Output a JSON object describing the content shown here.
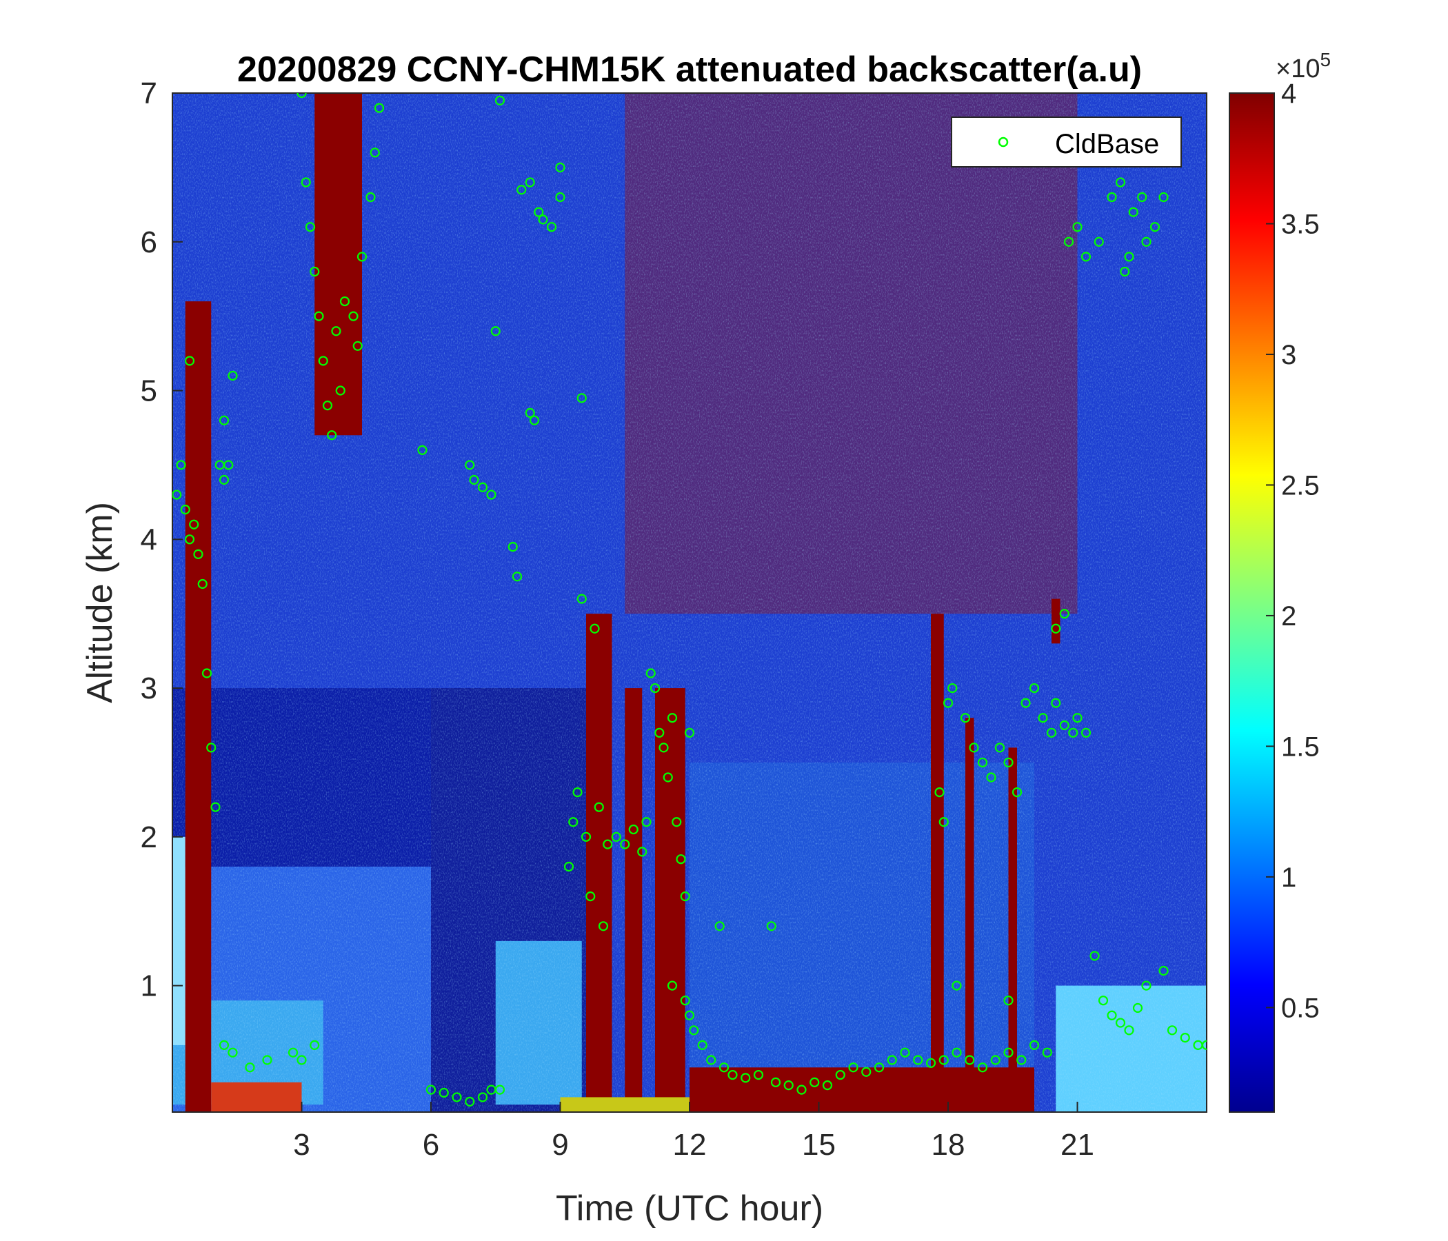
{
  "chart_data": {
    "type": "heatmap",
    "title": "20200829 CCNY-CHM15K attenuated backscatter(a.u)",
    "xlabel": "Time (UTC hour)",
    "ylabel": "Altitude (km)",
    "xlim": [
      0,
      24
    ],
    "ylim": [
      0.15,
      7
    ],
    "xticks": [
      3,
      6,
      9,
      12,
      15,
      18,
      21
    ],
    "xtick_labels": [
      "3",
      "6",
      "9",
      "12",
      "15",
      "18",
      "21"
    ],
    "yticks": [
      1,
      2,
      3,
      4,
      5,
      6,
      7
    ],
    "ytick_labels": [
      "1",
      "2",
      "3",
      "4",
      "5",
      "6",
      "7"
    ],
    "colormap": "jet",
    "colorbar": {
      "min": 0.1,
      "max": 4,
      "ticks": [
        0.5,
        1,
        1.5,
        2,
        2.5,
        3,
        3.5,
        4
      ],
      "tick_labels": [
        "0.5",
        "1",
        "1.5",
        "2",
        "2.5",
        "3",
        "3.5",
        "4"
      ],
      "multiplier_base": "×10",
      "multiplier_exponent": "5"
    },
    "legend": {
      "position": "top-right",
      "entries": [
        "CldBase"
      ]
    },
    "series": [
      {
        "name": "CldBase",
        "marker": "circle",
        "color": "#00ff00",
        "points": [
          [
            0.1,
            4.3
          ],
          [
            0.2,
            4.5
          ],
          [
            0.3,
            4.2
          ],
          [
            0.4,
            4.0
          ],
          [
            0.5,
            4.1
          ],
          [
            0.6,
            3.9
          ],
          [
            0.7,
            3.7
          ],
          [
            0.8,
            3.1
          ],
          [
            0.9,
            2.6
          ],
          [
            1.0,
            2.2
          ],
          [
            1.1,
            4.5
          ],
          [
            1.2,
            4.4
          ],
          [
            1.3,
            4.5
          ],
          [
            0.4,
            5.2
          ],
          [
            1.2,
            4.8
          ],
          [
            1.4,
            5.1
          ],
          [
            1.2,
            0.6
          ],
          [
            1.4,
            0.55
          ],
          [
            1.8,
            0.45
          ],
          [
            2.2,
            0.5
          ],
          [
            2.8,
            0.55
          ],
          [
            3.0,
            0.5
          ],
          [
            3.3,
            0.6
          ],
          [
            3.0,
            7.0
          ],
          [
            3.1,
            6.4
          ],
          [
            3.2,
            6.1
          ],
          [
            3.3,
            5.8
          ],
          [
            3.4,
            5.5
          ],
          [
            3.5,
            5.2
          ],
          [
            3.6,
            4.9
          ],
          [
            3.7,
            4.7
          ],
          [
            3.8,
            5.4
          ],
          [
            3.9,
            5.0
          ],
          [
            4.0,
            5.6
          ],
          [
            4.2,
            5.5
          ],
          [
            4.3,
            5.3
          ],
          [
            4.4,
            5.9
          ],
          [
            4.6,
            6.3
          ],
          [
            4.7,
            6.6
          ],
          [
            4.8,
            6.9
          ],
          [
            5.8,
            4.6
          ],
          [
            6.0,
            0.3
          ],
          [
            6.3,
            0.28
          ],
          [
            6.6,
            0.25
          ],
          [
            6.9,
            0.22
          ],
          [
            7.2,
            0.25
          ],
          [
            7.4,
            0.3
          ],
          [
            7.6,
            0.3
          ],
          [
            6.9,
            4.5
          ],
          [
            7.0,
            4.4
          ],
          [
            7.2,
            4.35
          ],
          [
            7.4,
            4.3
          ],
          [
            7.5,
            5.4
          ],
          [
            7.6,
            6.95
          ],
          [
            7.9,
            3.95
          ],
          [
            8.0,
            3.75
          ],
          [
            8.1,
            6.35
          ],
          [
            8.3,
            6.4
          ],
          [
            8.3,
            4.85
          ],
          [
            8.5,
            6.2
          ],
          [
            8.6,
            6.15
          ],
          [
            8.8,
            6.1
          ],
          [
            9.0,
            6.5
          ],
          [
            8.4,
            4.8
          ],
          [
            9.0,
            6.3
          ],
          [
            9.2,
            1.8
          ],
          [
            9.3,
            2.1
          ],
          [
            9.4,
            2.3
          ],
          [
            9.5,
            4.95
          ],
          [
            9.5,
            3.6
          ],
          [
            9.6,
            2.0
          ],
          [
            9.7,
            1.6
          ],
          [
            9.8,
            3.4
          ],
          [
            9.9,
            2.2
          ],
          [
            10.0,
            1.4
          ],
          [
            10.1,
            1.95
          ],
          [
            10.3,
            2.0
          ],
          [
            10.5,
            1.95
          ],
          [
            10.7,
            2.05
          ],
          [
            10.9,
            1.9
          ],
          [
            11.0,
            2.1
          ],
          [
            11.1,
            3.1
          ],
          [
            11.2,
            3.0
          ],
          [
            11.3,
            2.7
          ],
          [
            11.4,
            2.6
          ],
          [
            11.5,
            2.4
          ],
          [
            11.6,
            2.8
          ],
          [
            11.7,
            2.1
          ],
          [
            11.8,
            1.85
          ],
          [
            11.9,
            1.6
          ],
          [
            12.0,
            2.7
          ],
          [
            11.6,
            1.0
          ],
          [
            11.9,
            0.9
          ],
          [
            12.0,
            0.8
          ],
          [
            12.1,
            0.7
          ],
          [
            12.3,
            0.6
          ],
          [
            12.5,
            0.5
          ],
          [
            12.7,
            1.4
          ],
          [
            12.8,
            0.45
          ],
          [
            13.0,
            0.4
          ],
          [
            13.3,
            0.38
          ],
          [
            13.6,
            0.4
          ],
          [
            13.9,
            1.4
          ],
          [
            14.0,
            0.35
          ],
          [
            14.3,
            0.33
          ],
          [
            14.6,
            0.3
          ],
          [
            14.9,
            0.35
          ],
          [
            15.2,
            0.33
          ],
          [
            15.5,
            0.4
          ],
          [
            15.8,
            0.45
          ],
          [
            16.1,
            0.42
          ],
          [
            16.4,
            0.45
          ],
          [
            16.7,
            0.5
          ],
          [
            17.0,
            0.55
          ],
          [
            17.3,
            0.5
          ],
          [
            17.6,
            0.48
          ],
          [
            17.9,
            0.5
          ],
          [
            18.2,
            0.55
          ],
          [
            18.5,
            0.5
          ],
          [
            18.8,
            0.45
          ],
          [
            19.1,
            0.5
          ],
          [
            19.4,
            0.55
          ],
          [
            19.7,
            0.5
          ],
          [
            20.0,
            0.6
          ],
          [
            20.3,
            0.55
          ],
          [
            17.8,
            2.3
          ],
          [
            17.9,
            2.1
          ],
          [
            18.0,
            2.9
          ],
          [
            18.1,
            3.0
          ],
          [
            18.4,
            2.8
          ],
          [
            18.6,
            2.6
          ],
          [
            18.8,
            2.5
          ],
          [
            19.0,
            2.4
          ],
          [
            19.2,
            2.6
          ],
          [
            19.4,
            2.5
          ],
          [
            19.6,
            2.3
          ],
          [
            19.8,
            2.9
          ],
          [
            20.0,
            3.0
          ],
          [
            20.2,
            2.8
          ],
          [
            20.4,
            2.7
          ],
          [
            20.5,
            2.9
          ],
          [
            20.7,
            2.75
          ],
          [
            20.9,
            2.7
          ],
          [
            21.0,
            2.8
          ],
          [
            21.2,
            2.7
          ],
          [
            20.5,
            3.4
          ],
          [
            20.7,
            3.5
          ],
          [
            18.2,
            1.0
          ],
          [
            19.4,
            0.9
          ],
          [
            20.8,
            6.0
          ],
          [
            21.0,
            6.1
          ],
          [
            21.2,
            5.9
          ],
          [
            21.5,
            6.0
          ],
          [
            21.8,
            6.3
          ],
          [
            22.0,
            6.4
          ],
          [
            22.1,
            5.8
          ],
          [
            22.2,
            5.9
          ],
          [
            22.3,
            6.2
          ],
          [
            22.5,
            6.3
          ],
          [
            22.6,
            6.0
          ],
          [
            22.8,
            6.1
          ],
          [
            23.0,
            6.3
          ],
          [
            21.4,
            1.2
          ],
          [
            21.6,
            0.9
          ],
          [
            21.8,
            0.8
          ],
          [
            22.0,
            0.75
          ],
          [
            22.2,
            0.7
          ],
          [
            22.4,
            0.85
          ],
          [
            22.6,
            1.0
          ],
          [
            23.0,
            1.1
          ],
          [
            23.2,
            0.7
          ],
          [
            23.5,
            0.65
          ],
          [
            23.8,
            0.6
          ],
          [
            24.0,
            0.6
          ]
        ]
      }
    ]
  }
}
